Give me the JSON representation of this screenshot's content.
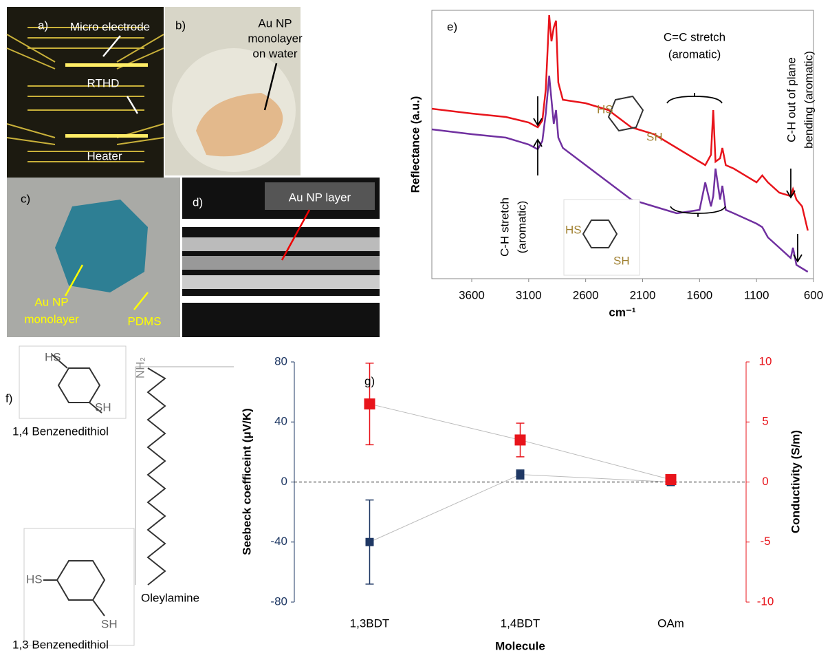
{
  "panels": {
    "a": {
      "label": "a)",
      "texts": [
        "Micro electrode",
        "RTHD",
        "Heater"
      ]
    },
    "b": {
      "label": "b)",
      "texts": [
        "Au NP",
        "monolayer",
        "on water"
      ]
    },
    "c": {
      "label": "c)",
      "texts": [
        "Au NP",
        "monolayer",
        "PDMS"
      ]
    },
    "d": {
      "label": "d)",
      "texts": [
        "Au NP layer"
      ]
    },
    "f": {
      "label": "f)",
      "mol14": {
        "hs": "HS",
        "sh": "SH",
        "name": "1,4 Benzenedithiol"
      },
      "mol13": {
        "hs": "HS",
        "sh": "SH",
        "name": "1,3 Benzenedithiol"
      },
      "oleyl": {
        "nh2": "NH₂",
        "name": "Oleylamine"
      }
    }
  },
  "chart_data": [
    {
      "type": "line",
      "title": "e)",
      "x_label": "cm⁻¹",
      "y_label": "Reflectance (a.u.)",
      "x": [
        3950,
        3600,
        3300,
        3100,
        3020,
        2980,
        2950,
        2920,
        2900,
        2880,
        2860,
        2840,
        2800,
        2600,
        2400,
        2200,
        2000,
        1800,
        1600,
        1550,
        1500,
        1480,
        1460,
        1420,
        1400,
        1370,
        1300,
        1100,
        1050,
        1000,
        900,
        800,
        780,
        750,
        700,
        650
      ],
      "series": [
        {
          "color": "#e8141b",
          "values": [
            247,
            240,
            235,
            227,
            220,
            230,
            275,
            383,
            345,
            365,
            375,
            285,
            260,
            255,
            245,
            220,
            210,
            190,
            170,
            165,
            180,
            245,
            170,
            175,
            190,
            165,
            160,
            140,
            150,
            140,
            125,
            120,
            130,
            115,
            105,
            70
          ]
        },
        {
          "color": "#7030a0",
          "values": [
            217,
            210,
            205,
            195,
            188,
            200,
            240,
            295,
            260,
            225,
            245,
            205,
            190,
            165,
            140,
            115,
            105,
            95,
            100,
            140,
            105,
            120,
            160,
            115,
            135,
            100,
            95,
            80,
            75,
            60,
            45,
            30,
            45,
            20,
            15,
            10
          ]
        }
      ],
      "xlim": [
        3950,
        600
      ],
      "xticks": [
        3600,
        3100,
        2600,
        2100,
        1600,
        1100,
        600
      ],
      "ylim": [
        0,
        390
      ],
      "annotations": {
        "cc1": "C=C stretch",
        "cc2": "(aromatic)",
        "ch1": "C-H stretch",
        "ch2": "(aromatic)",
        "oop1": "C-H out of plane",
        "oop2": "bending (aromatic)",
        "hs_a": "HS",
        "sh_a": "SH",
        "hs_b": "HS",
        "sh_b": "SH"
      }
    },
    {
      "type": "scatter",
      "title": "g)",
      "x_label": "Molecule",
      "y_label": "Seebeck coefficeint (μV/K)",
      "y2_label": "Conductivity (S/m)",
      "categories": [
        "1,3BDT",
        "1,4BDT",
        "OAm"
      ],
      "series": [
        {
          "color": "#1f3864",
          "values": [
            -40,
            5,
            0
          ],
          "errors": [
            28,
            3,
            2
          ]
        },
        {
          "color": "#e8141b",
          "axis": "y2",
          "values": [
            6.5,
            3.5,
            0.2
          ],
          "errors": [
            3.4,
            1.4,
            0.3
          ]
        }
      ],
      "ylim": [
        -80,
        80
      ],
      "yticks": [
        -80,
        -40,
        0,
        40,
        80
      ],
      "y2lim": [
        -10,
        10
      ],
      "y2ticks": [
        -10,
        -5,
        0,
        5,
        10
      ]
    }
  ]
}
